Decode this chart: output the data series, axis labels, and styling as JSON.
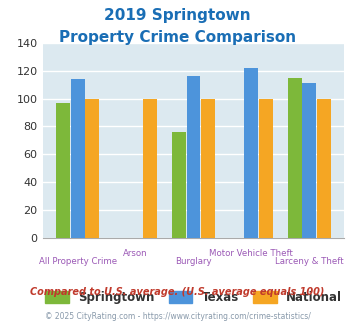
{
  "title_line1": "2019 Springtown",
  "title_line2": "Property Crime Comparison",
  "categories": [
    "All Property Crime",
    "Arson",
    "Burglary",
    "Motor Vehicle Theft",
    "Larceny & Theft"
  ],
  "springtown": [
    97,
    0,
    76,
    0,
    115
  ],
  "texas": [
    114,
    0,
    116,
    122,
    111
  ],
  "national": [
    100,
    100,
    100,
    100,
    100
  ],
  "bar_colors": {
    "springtown": "#7db83a",
    "texas": "#4d94db",
    "national": "#f5a623"
  },
  "ylim": [
    0,
    140
  ],
  "yticks": [
    0,
    20,
    40,
    60,
    80,
    100,
    120,
    140
  ],
  "title_color": "#1a6eb5",
  "axis_label_color": "#9b59b6",
  "footer_text1": "Compared to U.S. average. (U.S. average equals 100)",
  "footer_text2": "© 2025 CityRating.com - https://www.cityrating.com/crime-statistics/",
  "footer_color1": "#c0392b",
  "footer_color2": "#8899aa",
  "bg_color": "#dce9f0",
  "fig_bg": "#ffffff",
  "grid_color": "#ffffff",
  "legend_labels": [
    "Springtown",
    "Texas",
    "National"
  ]
}
